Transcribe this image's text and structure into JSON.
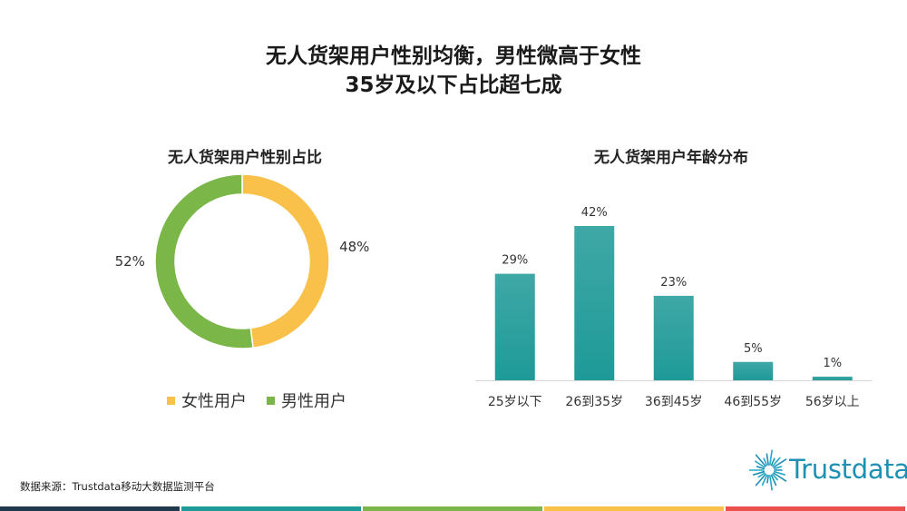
{
  "header": {
    "title_line1": "无人货架用户性别均衡，男性微高于女性",
    "title_line2": "35岁及以下占比超七成"
  },
  "source_text": "数据来源：Trustdata移动大数据监测平台",
  "logo_text": "Trustdata",
  "colors": {
    "female": "#F9C04A",
    "male": "#7AB648",
    "bar": "#1E9A98",
    "logo": "#1E90B4",
    "footer": [
      "#1F3A4A",
      "#1E9A98",
      "#7AB648",
      "#F9C04A",
      "#E8524A"
    ]
  },
  "chart_data": [
    {
      "type": "pie",
      "title": "无人货架用户性别占比",
      "donut": true,
      "legend_position": "bottom",
      "slices": [
        {
          "label": "女性用户",
          "value": 48,
          "display": "48%"
        },
        {
          "label": "男性用户",
          "value": 52,
          "display": "52%"
        }
      ]
    },
    {
      "type": "bar",
      "title": "无人货架用户年龄分布",
      "categories": [
        "25岁以下",
        "26到35岁",
        "36到45岁",
        "46到55岁",
        "56岁以上"
      ],
      "values": [
        29,
        42,
        23,
        5,
        1
      ],
      "value_labels": [
        "29%",
        "42%",
        "23%",
        "5%",
        "1%"
      ],
      "ylim": [
        0,
        42
      ],
      "grid": false
    }
  ]
}
